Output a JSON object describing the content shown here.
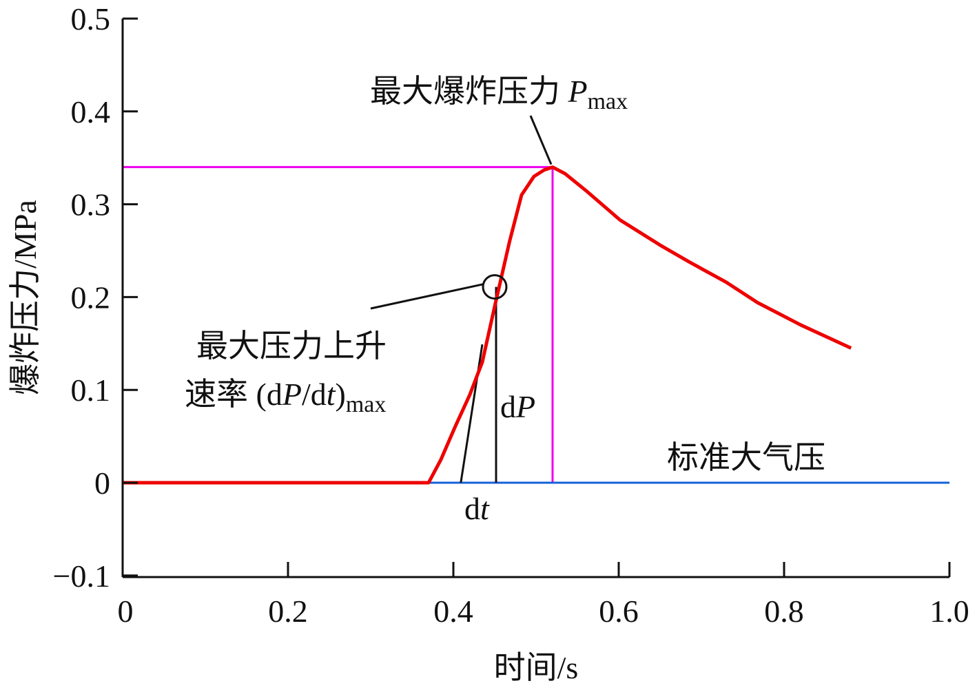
{
  "chart_data": {
    "type": "line",
    "xlabel": "时间/s",
    "ylabel": "爆炸压力/MPa",
    "xlim": [
      0,
      1.0
    ],
    "ylim": [
      -0.1,
      0.5
    ],
    "xticks": [
      "0",
      "0.2",
      "0.4",
      "0.6",
      "0.8",
      "1.0"
    ],
    "xtick_values": [
      0,
      0.2,
      0.4,
      0.6,
      0.8,
      1.0
    ],
    "yticks": [
      "−0.1",
      "0",
      "0.1",
      "0.2",
      "0.3",
      "0.4",
      "0.5"
    ],
    "ytick_values": [
      -0.1,
      0,
      0.1,
      0.2,
      0.3,
      0.4,
      0.5
    ],
    "grid": false,
    "colors": {
      "pressure_curve": "#ee0000",
      "max_pressure_lines": "#ee00ee",
      "atmospheric_line": "#1560d8",
      "annotation": "#111111"
    },
    "series": [
      {
        "x": [
          0,
          0.37,
          0.385,
          0.402,
          0.42,
          0.435,
          0.45,
          0.468,
          0.4825,
          0.4975,
          0.51,
          0.52,
          0.535,
          0.56,
          0.6017,
          0.65,
          0.685,
          0.73,
          0.768,
          0.82,
          0.881
        ],
        "y": [
          0,
          0,
          0.025,
          0.06,
          0.095,
          0.13,
          0.19,
          0.26,
          0.31,
          0.33,
          0.337,
          0.34,
          0.333,
          0.315,
          0.283,
          0.256,
          0.238,
          0.216,
          0.194,
          0.17,
          0.145
        ]
      }
    ],
    "reference_lines": {
      "max_pressure": {
        "y": 0.34,
        "x": 0.52
      },
      "atmospheric": {
        "y": 0,
        "x_from": 0.37,
        "x_to": 1.0
      },
      "tangent": {
        "x": [
          0.409,
          0.435
        ],
        "y": [
          0,
          0.149
        ]
      },
      "marker_point": {
        "x": 0.45,
        "y": 0.211
      }
    },
    "annotations": {
      "pmax": {
        "text": "最大爆炸压力 ",
        "var": "P",
        "sub": "max"
      },
      "rate_line1": "最大压力上升",
      "rate_line2": {
        "text": "速率 (d",
        "var": "P",
        "mid": "/d",
        "var2": "t",
        "close": ")",
        "sub": "max"
      },
      "dP": {
        "d": "d",
        "var": "P"
      },
      "dt": {
        "d": "d",
        "var": "t"
      },
      "atm": "标准大气压"
    }
  }
}
